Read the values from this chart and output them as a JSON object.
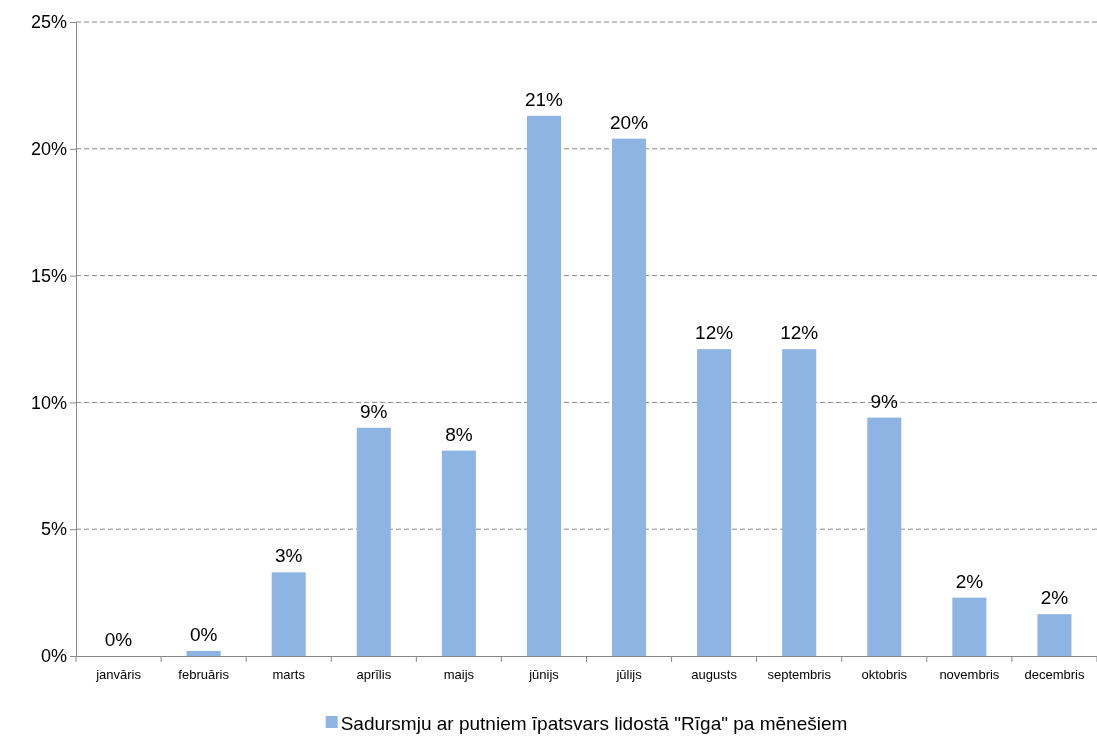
{
  "chart_data": {
    "type": "bar",
    "categories": [
      "janvāris",
      "februāris",
      "marts",
      "aprīlis",
      "maijs",
      "jūnijs",
      "jūlijs",
      "augusts",
      "septembris",
      "oktobris",
      "novembris",
      "decembris"
    ],
    "series": [
      {
        "name": "Sadursmju ar putniem īpatsvars lidostā \"Rīga\" pa mēnešiem",
        "color": "#8eb4e3",
        "values": [
          0,
          0.2,
          3.3,
          9.0,
          8.1,
          21.3,
          20.4,
          12.1,
          12.1,
          9.4,
          2.3,
          1.65
        ],
        "value_labels": [
          "0%",
          "0%",
          "3%",
          "9%",
          "8%",
          "21%",
          "20%",
          "12%",
          "12%",
          "9%",
          "2%",
          "2%"
        ]
      }
    ],
    "ylim": [
      0,
      25
    ],
    "yticks": [
      {
        "value": 0,
        "label": "0%"
      },
      {
        "value": 5,
        "label": "5%"
      },
      {
        "value": 10,
        "label": "10%"
      },
      {
        "value": 15,
        "label": "15%"
      },
      {
        "value": 20,
        "label": "20%"
      },
      {
        "value": 25,
        "label": "25%"
      }
    ],
    "grid": "y",
    "legend": "bottom"
  }
}
